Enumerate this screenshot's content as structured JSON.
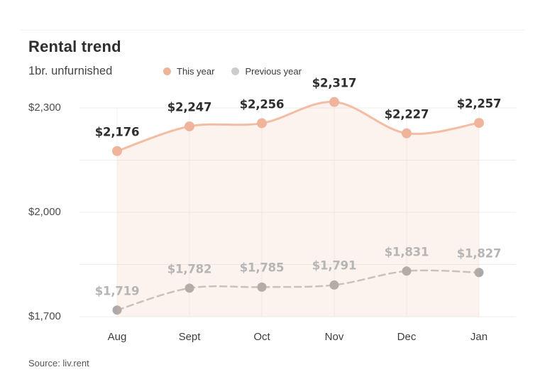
{
  "source": {
    "text": "Source: liv.rent"
  },
  "chart_data": {
    "type": "line",
    "title": "Rental trend",
    "subtitle": "1br. unfurnished",
    "categories": [
      "Aug",
      "Sept",
      "Oct",
      "Nov",
      "Dec",
      "Jan"
    ],
    "series": [
      {
        "name": "This year",
        "values": [
          2176,
          2247,
          2256,
          2317,
          2227,
          2257
        ],
        "color": "#f2bda3",
        "dot_color": "#efb49b",
        "area_fill": "rgba(242,187,160,0.18)",
        "line_style": "solid",
        "label_color": "#2d2d2d"
      },
      {
        "name": "Previous year",
        "values": [
          1719,
          1782,
          1785,
          1791,
          1831,
          1827
        ],
        "color": "#c2c2c2",
        "dot_color": "#a9a9a9",
        "area_fill": null,
        "line_style": "dashed",
        "label_color": "#b5b5b5"
      }
    ],
    "value_prefix": "$",
    "y_axis": {
      "range": [
        1700,
        2300
      ],
      "tick_values": [
        2300,
        2000,
        1700
      ],
      "tick_labels": [
        "$2,300",
        "$2,000",
        "$1,700"
      ],
      "gridline_values": [
        2300,
        2150,
        2000,
        1850,
        1700
      ]
    },
    "grid": true,
    "legend_position": "top"
  }
}
